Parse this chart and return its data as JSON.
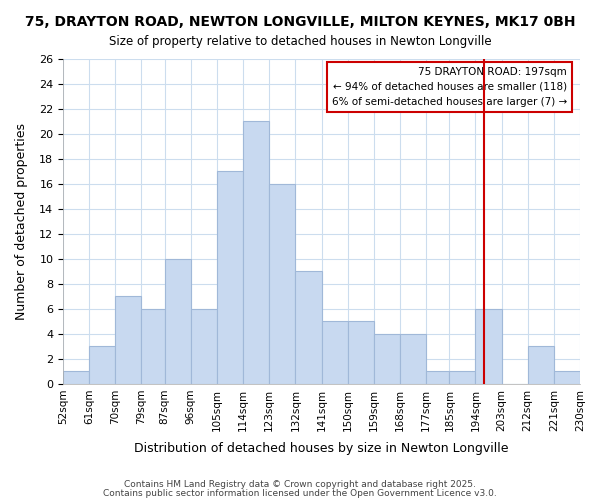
{
  "title": "75, DRAYTON ROAD, NEWTON LONGVILLE, MILTON KEYNES, MK17 0BH",
  "subtitle": "Size of property relative to detached houses in Newton Longville",
  "xlabel": "Distribution of detached houses by size in Newton Longville",
  "ylabel": "Number of detached properties",
  "bar_color": "#c8d9f0",
  "bar_edge_color": "#a0b8d8",
  "bins": [
    52,
    61,
    70,
    79,
    87,
    96,
    105,
    114,
    123,
    132,
    141,
    150,
    159,
    168,
    177,
    185,
    194,
    203,
    212,
    221,
    230
  ],
  "counts": [
    1,
    3,
    7,
    6,
    10,
    6,
    17,
    21,
    16,
    9,
    5,
    5,
    4,
    4,
    1,
    1,
    6,
    0,
    3,
    1
  ],
  "tick_labels": [
    "52sqm",
    "61sqm",
    "70sqm",
    "79sqm",
    "87sqm",
    "96sqm",
    "105sqm",
    "114sqm",
    "123sqm",
    "132sqm",
    "141sqm",
    "150sqm",
    "159sqm",
    "168sqm",
    "177sqm",
    "185sqm",
    "194sqm",
    "203sqm",
    "212sqm",
    "221sqm",
    "230sqm"
  ],
  "vline_x": 197,
  "vline_color": "#cc0000",
  "annotation_title": "75 DRAYTON ROAD: 197sqm",
  "annotation_line1": "← 94% of detached houses are smaller (118)",
  "annotation_line2": "6% of semi-detached houses are larger (7) →",
  "annotation_box_color": "#ffffff",
  "annotation_box_edge": "#cc0000",
  "ylim": [
    0,
    26
  ],
  "yticks": [
    0,
    2,
    4,
    6,
    8,
    10,
    12,
    14,
    16,
    18,
    20,
    22,
    24,
    26
  ],
  "footer1": "Contains HM Land Registry data © Crown copyright and database right 2025.",
  "footer2": "Contains public sector information licensed under the Open Government Licence v3.0.",
  "bg_color": "#ffffff",
  "grid_color": "#ccddee"
}
